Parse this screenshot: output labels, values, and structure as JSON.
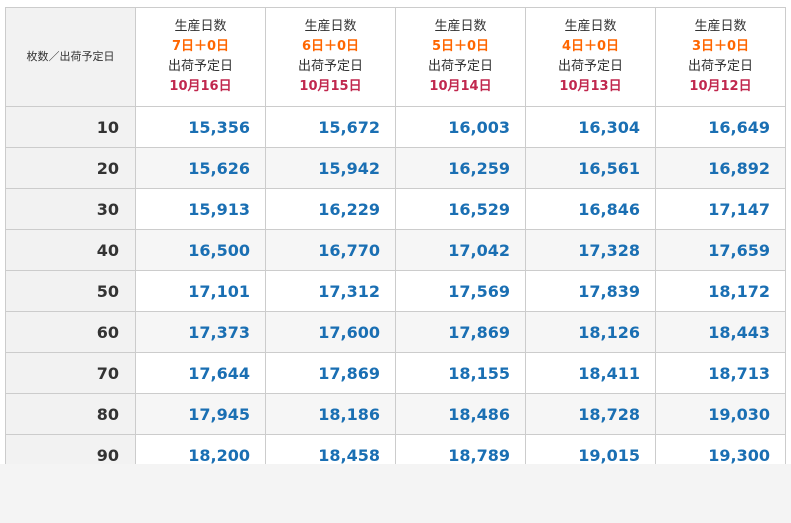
{
  "table": {
    "corner_label": "枚数／出荷予定日",
    "columns": [
      {
        "production_label": "生産日数",
        "days": "7日＋0日",
        "ship_label": "出荷予定日",
        "date": "10月16日"
      },
      {
        "production_label": "生産日数",
        "days": "6日＋0日",
        "ship_label": "出荷予定日",
        "date": "10月15日"
      },
      {
        "production_label": "生産日数",
        "days": "5日＋0日",
        "ship_label": "出荷予定日",
        "date": "10月14日"
      },
      {
        "production_label": "生産日数",
        "days": "4日＋0日",
        "ship_label": "出荷予定日",
        "date": "10月13日"
      },
      {
        "production_label": "生産日数",
        "days": "3日＋0日",
        "ship_label": "出荷予定日",
        "date": "10月12日"
      }
    ],
    "rows": [
      {
        "qty": "10",
        "prices": [
          "15,356",
          "15,672",
          "16,003",
          "16,304",
          "16,649"
        ]
      },
      {
        "qty": "20",
        "prices": [
          "15,626",
          "15,942",
          "16,259",
          "16,561",
          "16,892"
        ]
      },
      {
        "qty": "30",
        "prices": [
          "15,913",
          "16,229",
          "16,529",
          "16,846",
          "17,147"
        ]
      },
      {
        "qty": "40",
        "prices": [
          "16,500",
          "16,770",
          "17,042",
          "17,328",
          "17,659"
        ]
      },
      {
        "qty": "50",
        "prices": [
          "17,101",
          "17,312",
          "17,569",
          "17,839",
          "18,172"
        ]
      },
      {
        "qty": "60",
        "prices": [
          "17,373",
          "17,600",
          "17,869",
          "18,126",
          "18,443"
        ]
      },
      {
        "qty": "70",
        "prices": [
          "17,644",
          "17,869",
          "18,155",
          "18,411",
          "18,713"
        ]
      },
      {
        "qty": "80",
        "prices": [
          "17,945",
          "18,186",
          "18,486",
          "18,728",
          "19,030"
        ]
      },
      {
        "qty": "90",
        "prices": [
          "18,200",
          "18,458",
          "18,789",
          "19,015",
          "19,300"
        ]
      }
    ]
  },
  "colors": {
    "days_accent": "#ff6600",
    "date_accent": "#c0284e",
    "price_blue": "#1a6fb3"
  }
}
